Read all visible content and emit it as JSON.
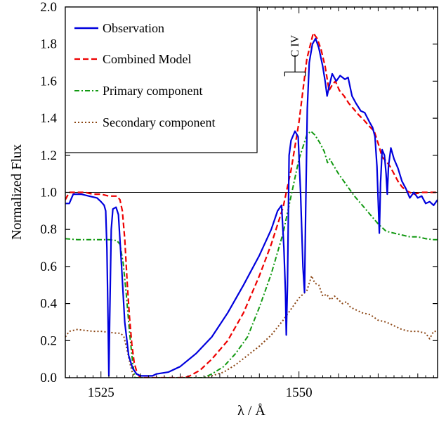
{
  "chart_data": {
    "type": "line",
    "xlabel": "λ / Å",
    "ylabel": "Normalized Flux",
    "xlim": [
      1520.5,
      1567.5
    ],
    "ylim": [
      0.0,
      2.0
    ],
    "x_ticks": [
      {
        "value": 1525,
        "label": "1525"
      },
      {
        "value": 1550,
        "label": "1550"
      }
    ],
    "y_ticks": [
      {
        "value": 0.0,
        "label": "0.0"
      },
      {
        "value": 0.2,
        "label": "0.2"
      },
      {
        "value": 0.4,
        "label": "0.4"
      },
      {
        "value": 0.6,
        "label": "0.6"
      },
      {
        "value": 0.8,
        "label": "0.8"
      },
      {
        "value": 1.0,
        "label": "1.0"
      },
      {
        "value": 1.2,
        "label": "1.2"
      },
      {
        "value": 1.4,
        "label": "1.4"
      },
      {
        "value": 1.6,
        "label": "1.6"
      },
      {
        "value": 1.8,
        "label": "1.8"
      },
      {
        "value": 2.0,
        "label": "2.0"
      }
    ],
    "reference_line": {
      "y": 1.0,
      "color": "#000000"
    },
    "legend": {
      "placement": "top-left"
    },
    "annotation": {
      "text": "C IV",
      "doublet": [
        1548.2,
        1550.8
      ],
      "y": 1.9
    },
    "series": [
      {
        "name": "Observation",
        "color": "#0000dd",
        "style": "solid",
        "points": [
          [
            1520.5,
            0.94
          ],
          [
            1521.0,
            0.94
          ],
          [
            1521.5,
            0.99
          ],
          [
            1522.5,
            0.99
          ],
          [
            1523.5,
            0.98
          ],
          [
            1524.5,
            0.97
          ],
          [
            1525.0,
            0.95
          ],
          [
            1525.4,
            0.93
          ],
          [
            1525.6,
            0.9
          ],
          [
            1525.75,
            0.7
          ],
          [
            1525.9,
            0.3
          ],
          [
            1526.0,
            0.01
          ],
          [
            1526.1,
            0.3
          ],
          [
            1526.3,
            0.8
          ],
          [
            1526.5,
            0.91
          ],
          [
            1526.9,
            0.92
          ],
          [
            1527.2,
            0.88
          ],
          [
            1527.6,
            0.6
          ],
          [
            1528.0,
            0.3
          ],
          [
            1528.5,
            0.12
          ],
          [
            1529.0,
            0.05
          ],
          [
            1529.5,
            0.02
          ],
          [
            1530.0,
            0.01
          ],
          [
            1531.5,
            0.01
          ],
          [
            1532.0,
            0.02
          ],
          [
            1533.5,
            0.03
          ],
          [
            1535.0,
            0.06
          ],
          [
            1537.0,
            0.13
          ],
          [
            1539.0,
            0.22
          ],
          [
            1541.0,
            0.35
          ],
          [
            1543.0,
            0.5
          ],
          [
            1545.0,
            0.66
          ],
          [
            1546.5,
            0.8
          ],
          [
            1547.3,
            0.9
          ],
          [
            1547.8,
            0.93
          ],
          [
            1548.1,
            0.7
          ],
          [
            1548.3,
            0.45
          ],
          [
            1548.4,
            0.23
          ],
          [
            1548.55,
            0.5
          ],
          [
            1548.75,
            1.2
          ],
          [
            1549.0,
            1.28
          ],
          [
            1549.5,
            1.33
          ],
          [
            1549.9,
            1.3
          ],
          [
            1550.2,
            1.0
          ],
          [
            1550.5,
            0.6
          ],
          [
            1550.7,
            0.46
          ],
          [
            1550.85,
            0.9
          ],
          [
            1551.05,
            1.45
          ],
          [
            1551.3,
            1.7
          ],
          [
            1551.7,
            1.8
          ],
          [
            1552.1,
            1.83
          ],
          [
            1552.5,
            1.78
          ],
          [
            1553.0,
            1.68
          ],
          [
            1553.3,
            1.6
          ],
          [
            1553.55,
            1.52
          ],
          [
            1553.8,
            1.57
          ],
          [
            1554.2,
            1.64
          ],
          [
            1554.7,
            1.6
          ],
          [
            1555.2,
            1.63
          ],
          [
            1555.8,
            1.61
          ],
          [
            1556.2,
            1.62
          ],
          [
            1556.7,
            1.52
          ],
          [
            1557.2,
            1.48
          ],
          [
            1557.8,
            1.44
          ],
          [
            1558.3,
            1.43
          ],
          [
            1558.9,
            1.38
          ],
          [
            1559.3,
            1.35
          ],
          [
            1559.6,
            1.3
          ],
          [
            1559.85,
            1.14
          ],
          [
            1560.0,
            0.96
          ],
          [
            1560.15,
            0.78
          ],
          [
            1560.3,
            1.05
          ],
          [
            1560.5,
            1.23
          ],
          [
            1560.8,
            1.2
          ],
          [
            1561.0,
            1.1
          ],
          [
            1561.15,
            0.99
          ],
          [
            1561.3,
            1.14
          ],
          [
            1561.6,
            1.24
          ],
          [
            1562.0,
            1.18
          ],
          [
            1562.5,
            1.13
          ],
          [
            1563.0,
            1.06
          ],
          [
            1563.5,
            1.02
          ],
          [
            1564.0,
            0.97
          ],
          [
            1564.5,
            1.0
          ],
          [
            1565.0,
            0.97
          ],
          [
            1565.5,
            0.98
          ],
          [
            1566.0,
            0.94
          ],
          [
            1566.5,
            0.95
          ],
          [
            1567.0,
            0.93
          ],
          [
            1567.5,
            0.96
          ]
        ]
      },
      {
        "name": "Combined Model",
        "color": "#ee0000",
        "style": "dashed",
        "points": [
          [
            1520.5,
            0.96
          ],
          [
            1521.0,
            1.0
          ],
          [
            1522.0,
            1.0
          ],
          [
            1523.0,
            1.0
          ],
          [
            1524.0,
            0.99
          ],
          [
            1525.0,
            0.99
          ],
          [
            1526.0,
            0.98
          ],
          [
            1526.5,
            0.98
          ],
          [
            1527.0,
            0.98
          ],
          [
            1527.4,
            0.96
          ],
          [
            1527.7,
            0.9
          ],
          [
            1528.0,
            0.75
          ],
          [
            1528.3,
            0.52
          ],
          [
            1528.6,
            0.33
          ],
          [
            1528.9,
            0.18
          ],
          [
            1529.2,
            0.08
          ],
          [
            1529.6,
            0.02
          ],
          [
            1530.0,
            0.0
          ],
          [
            1535.0,
            0.0
          ],
          [
            1536.0,
            0.005
          ],
          [
            1537.5,
            0.04
          ],
          [
            1539.0,
            0.1
          ],
          [
            1541.0,
            0.2
          ],
          [
            1543.0,
            0.35
          ],
          [
            1545.0,
            0.55
          ],
          [
            1546.5,
            0.72
          ],
          [
            1548.0,
            0.92
          ],
          [
            1549.0,
            1.12
          ],
          [
            1550.0,
            1.38
          ],
          [
            1551.0,
            1.72
          ],
          [
            1551.8,
            1.86
          ],
          [
            1552.3,
            1.83
          ],
          [
            1552.8,
            1.77
          ],
          [
            1553.3,
            1.68
          ],
          [
            1553.8,
            1.55
          ],
          [
            1554.2,
            1.58
          ],
          [
            1554.6,
            1.6
          ],
          [
            1555.1,
            1.55
          ],
          [
            1555.7,
            1.52
          ],
          [
            1556.3,
            1.48
          ],
          [
            1556.9,
            1.45
          ],
          [
            1557.5,
            1.42
          ],
          [
            1558.2,
            1.39
          ],
          [
            1558.8,
            1.36
          ],
          [
            1559.5,
            1.33
          ],
          [
            1560.1,
            1.25
          ],
          [
            1560.5,
            1.19
          ],
          [
            1561.0,
            1.17
          ],
          [
            1561.5,
            1.14
          ],
          [
            1562.0,
            1.1
          ],
          [
            1562.5,
            1.06
          ],
          [
            1563.0,
            1.03
          ],
          [
            1563.5,
            1.01
          ],
          [
            1564.5,
            0.99
          ],
          [
            1565.5,
            1.0
          ],
          [
            1566.5,
            1.0
          ],
          [
            1567.5,
            1.0
          ]
        ]
      },
      {
        "name": "Primary component",
        "color": "#119911",
        "style": "dashdot",
        "points": [
          [
            1520.5,
            0.75
          ],
          [
            1522.0,
            0.745
          ],
          [
            1524.0,
            0.745
          ],
          [
            1526.0,
            0.745
          ],
          [
            1527.0,
            0.74
          ],
          [
            1527.4,
            0.72
          ],
          [
            1527.8,
            0.62
          ],
          [
            1528.2,
            0.45
          ],
          [
            1528.6,
            0.25
          ],
          [
            1529.0,
            0.08
          ],
          [
            1529.3,
            0.0
          ],
          [
            1538.0,
            0.0
          ],
          [
            1539.0,
            0.02
          ],
          [
            1540.5,
            0.06
          ],
          [
            1542.0,
            0.13
          ],
          [
            1543.5,
            0.22
          ],
          [
            1545.0,
            0.38
          ],
          [
            1546.5,
            0.56
          ],
          [
            1548.0,
            0.78
          ],
          [
            1549.0,
            0.98
          ],
          [
            1550.0,
            1.18
          ],
          [
            1551.0,
            1.31
          ],
          [
            1551.5,
            1.33
          ],
          [
            1552.0,
            1.31
          ],
          [
            1552.6,
            1.27
          ],
          [
            1553.2,
            1.22
          ],
          [
            1553.6,
            1.16
          ],
          [
            1553.9,
            1.18
          ],
          [
            1554.3,
            1.15
          ],
          [
            1555.0,
            1.1
          ],
          [
            1556.0,
            1.04
          ],
          [
            1557.0,
            0.98
          ],
          [
            1558.0,
            0.93
          ],
          [
            1559.0,
            0.88
          ],
          [
            1560.0,
            0.83
          ],
          [
            1561.0,
            0.79
          ],
          [
            1562.0,
            0.78
          ],
          [
            1563.0,
            0.77
          ],
          [
            1564.0,
            0.76
          ],
          [
            1565.0,
            0.76
          ],
          [
            1566.0,
            0.75
          ],
          [
            1567.0,
            0.745
          ],
          [
            1567.5,
            0.745
          ]
        ]
      },
      {
        "name": "Secondary component",
        "color": "#8b4513",
        "style": "dotted",
        "points": [
          [
            1520.5,
            0.22
          ],
          [
            1521.0,
            0.25
          ],
          [
            1522.0,
            0.26
          ],
          [
            1523.0,
            0.255
          ],
          [
            1524.0,
            0.25
          ],
          [
            1525.0,
            0.25
          ],
          [
            1526.0,
            0.245
          ],
          [
            1527.0,
            0.24
          ],
          [
            1527.5,
            0.24
          ],
          [
            1527.9,
            0.22
          ],
          [
            1528.3,
            0.15
          ],
          [
            1528.7,
            0.07
          ],
          [
            1529.0,
            0.02
          ],
          [
            1529.3,
            0.0
          ],
          [
            1538.0,
            0.0
          ],
          [
            1539.0,
            0.01
          ],
          [
            1540.5,
            0.03
          ],
          [
            1542.0,
            0.07
          ],
          [
            1543.5,
            0.12
          ],
          [
            1545.0,
            0.17
          ],
          [
            1546.5,
            0.23
          ],
          [
            1548.0,
            0.31
          ],
          [
            1549.0,
            0.37
          ],
          [
            1550.0,
            0.43
          ],
          [
            1551.0,
            0.47
          ],
          [
            1551.6,
            0.55
          ],
          [
            1552.0,
            0.51
          ],
          [
            1552.5,
            0.5
          ],
          [
            1553.0,
            0.44
          ],
          [
            1553.5,
            0.45
          ],
          [
            1554.0,
            0.42
          ],
          [
            1554.5,
            0.44
          ],
          [
            1555.0,
            0.42
          ],
          [
            1555.5,
            0.4
          ],
          [
            1556.0,
            0.41
          ],
          [
            1556.5,
            0.38
          ],
          [
            1557.0,
            0.37
          ],
          [
            1558.0,
            0.35
          ],
          [
            1559.0,
            0.34
          ],
          [
            1560.0,
            0.31
          ],
          [
            1561.0,
            0.3
          ],
          [
            1562.0,
            0.28
          ],
          [
            1563.0,
            0.26
          ],
          [
            1564.0,
            0.25
          ],
          [
            1565.0,
            0.25
          ],
          [
            1566.0,
            0.24
          ],
          [
            1566.5,
            0.21
          ],
          [
            1567.0,
            0.25
          ],
          [
            1567.5,
            0.25
          ]
        ]
      }
    ]
  }
}
